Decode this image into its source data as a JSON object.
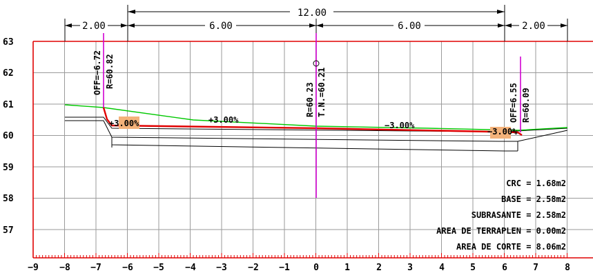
{
  "title": "",
  "dimensions": {
    "top": "12.00",
    "left_edge": "2.00",
    "left_lane": "6.00",
    "right_lane": "6.00",
    "right_edge": "2.00"
  },
  "y_ticks": [
    "63",
    "62",
    "61",
    "60",
    "59",
    "58",
    "57"
  ],
  "x_ticks": [
    "−9",
    "−8",
    "−7",
    "−6",
    "−5",
    "−4",
    "−3",
    "−2",
    "−1",
    "0",
    "1",
    "2",
    "3",
    "4",
    "5",
    "6",
    "7",
    "8"
  ],
  "left_offset": {
    "off": "OFF=−6.72",
    "r": "R=60.82"
  },
  "center": {
    "r": "R=60.23",
    "tn": "T.N.=60.21"
  },
  "right_offset": {
    "off": "OFF=6.55",
    "r": "R=60.09"
  },
  "slopes": {
    "left_shoulder": "+3.00%",
    "left_lane": "+3.00%",
    "right_lane": "−3.00%",
    "right_shoulder": "−3.00%"
  },
  "areas": [
    "CRC = 1.68m2",
    "BASE = 2.58m2",
    "SUBRASANTE = 2.58m2",
    "AREA DE TERRAPLEN = 0.00m2",
    "AREA DE CORTE = 8.06m2"
  ],
  "colors": {
    "frame": "#e00000",
    "grid": "#9a9a9a",
    "ground_line": "#00c800",
    "axis_marker": "#d000d0",
    "curb": "#f4b27a"
  },
  "chart_data": {
    "type": "line",
    "x_range": [
      -9,
      8
    ],
    "y_range": [
      56,
      63
    ],
    "series": [
      {
        "values": [
          [
            -8,
            60.95
          ],
          [
            -6.72,
            60.82
          ],
          [
            -4,
            60.5
          ],
          [
            0,
            60.21
          ],
          [
            6.55,
            60.09
          ],
          [
            8,
            60.25
          ]
        ]
      },
      {
        "values": [
          [
            -6.72,
            60.82
          ],
          [
            -6.45,
            60.35
          ],
          [
            0,
            60.23
          ],
          [
            5.6,
            60.08
          ],
          [
            6.55,
            60.09
          ],
          [
            6.7,
            60.0
          ]
        ]
      }
    ]
  }
}
